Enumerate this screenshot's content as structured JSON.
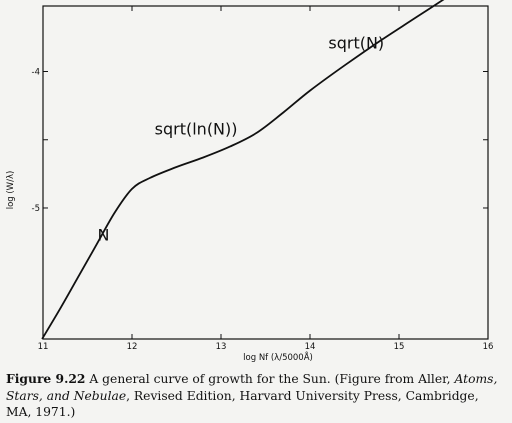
{
  "chart_data": {
    "type": "line",
    "xlabel": "log Nf (λ/5000Å)",
    "ylabel": "log (W/λ)",
    "xlim": [
      11,
      16
    ],
    "ylim": [
      -5.96,
      -3.52
    ],
    "xticks": [
      "11",
      "12",
      "13",
      "14",
      "15",
      "16"
    ],
    "yticks": [
      "-4",
      "",
      "-5"
    ],
    "ytick_values": [
      -4,
      -4.5,
      -5
    ],
    "grid": false,
    "series": [
      {
        "x": [
          10.99,
          11.2,
          11.4,
          11.6,
          11.8,
          12.0,
          12.2,
          12.5,
          12.8,
          13.1,
          13.4,
          13.7,
          14.0,
          14.4,
          14.8,
          15.2,
          15.6
        ],
        "y": [
          -5.96,
          -5.73,
          -5.5,
          -5.27,
          -5.04,
          -4.86,
          -4.78,
          -4.7,
          -4.63,
          -4.55,
          -4.45,
          -4.3,
          -4.14,
          -3.95,
          -3.77,
          -3.6,
          -3.43
        ]
      }
    ],
    "annotations": [
      {
        "text": "N",
        "x": 11.68,
        "y": -5.24
      },
      {
        "text": "sqrt(ln(N))",
        "x": 12.72,
        "y": -4.46
      },
      {
        "text": "sqrt(N)",
        "x": 14.52,
        "y": -3.83
      }
    ]
  },
  "caption": {
    "label": "Figure 9.22",
    "text_1": " A general curve of growth for the Sun. (Figure from Aller, ",
    "italic": "Atoms, Stars, and Nebulae",
    "text_2": ", Revised Edition, Harvard University Press, Cambridge, MA, 1971.)"
  }
}
